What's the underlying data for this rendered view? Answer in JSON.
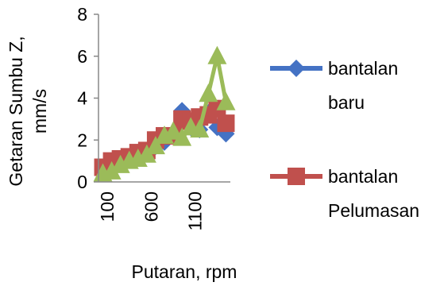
{
  "chart_data": {
    "type": "line",
    "title": "",
    "xlabel": "Putaran, rpm",
    "ylabel": [
      "Getaran Sumbu Z,",
      "mm/s"
    ],
    "ylim": [
      0,
      8
    ],
    "yticks": [
      "0",
      "2",
      "4",
      "6",
      "8"
    ],
    "xticks": [
      {
        "value": 100,
        "label": "100"
      },
      {
        "value": 600,
        "label": "600"
      },
      {
        "value": 1100,
        "label": "1100"
      }
    ],
    "xlim": [
      0,
      1500
    ],
    "grid": false,
    "legend_position": "right",
    "series": [
      {
        "name": [
          "bantalan",
          "baru"
        ],
        "color": "#4472C4",
        "marker": "diamond",
        "x": [
          50,
          150,
          250,
          350,
          450,
          550,
          650,
          750,
          850,
          950,
          1050,
          1150,
          1250,
          1350,
          1450
        ],
        "y": [
          0.6,
          0.8,
          1.0,
          1.2,
          1.3,
          1.5,
          1.7,
          1.9,
          2.3,
          3.4,
          2.6,
          2.5,
          3.3,
          2.6,
          2.3
        ]
      },
      {
        "name": [
          "bantalan",
          "Pelumasan"
        ],
        "color": "#C0504D",
        "marker": "square",
        "x": [
          50,
          150,
          250,
          350,
          450,
          550,
          650,
          750,
          850,
          950,
          1050,
          1150,
          1250,
          1350,
          1450
        ],
        "y": [
          0.7,
          1.0,
          1.1,
          1.2,
          1.4,
          1.5,
          2.0,
          2.2,
          2.2,
          3.0,
          2.9,
          3.1,
          3.2,
          3.5,
          2.8
        ]
      },
      {
        "name": "",
        "color": "#9BBB59",
        "marker": "triangle",
        "x": [
          50,
          150,
          250,
          350,
          450,
          550,
          650,
          750,
          850,
          950,
          1050,
          1150,
          1250,
          1350,
          1450
        ],
        "y": [
          0.4,
          0.5,
          0.8,
          1.0,
          1.1,
          1.3,
          1.7,
          2.2,
          2.4,
          2.1,
          2.6,
          2.5,
          4.2,
          6.0,
          3.8
        ]
      }
    ]
  }
}
